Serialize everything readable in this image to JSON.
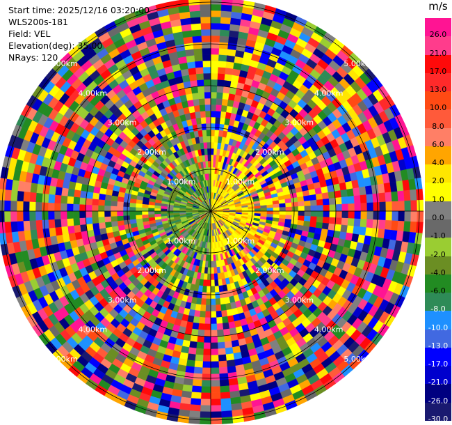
{
  "info": {
    "start_time": "Start time: 2025/12/16 03:20:00",
    "station": "WLS200s-181",
    "field": "Field: VEL",
    "elevation": "Elevation(deg): 35.00",
    "nrays": "NRays: 120"
  },
  "chart_data": {
    "type": "heatmap",
    "subtype": "polar-ppi",
    "field": "VEL",
    "elevation_deg": 35.0,
    "nrays": 120,
    "range_rings_km": [
      1,
      2,
      3,
      4,
      5
    ],
    "range_ring_labels": [
      "1.00km",
      "2.00km",
      "3.00km",
      "4.00km",
      "5.00km"
    ],
    "max_range_km": 5.1,
    "azimuth_spokes": 12,
    "pattern": {
      "inner_coherent_range_km": 1.0,
      "mixed_range_km": 2.0,
      "east_half_velocity": "1.0 to 4.0 m/s (positive, yellow)",
      "west_half_velocity": "-2.0 to -8.0 m/s (negative, green)",
      "beyond_2km": "noise, all colors"
    },
    "colorbar": {
      "unit": "m/s",
      "tick_labels": [
        "26.0",
        "21.0",
        "17.0",
        "13.0",
        "10.0",
        "8.0",
        "6.0",
        "4.0",
        "2.0",
        "1.0",
        "0.0",
        "-1.0",
        "-2.0",
        "-4.0",
        "-6.0",
        "-8.0",
        "-10.0",
        "-13.0",
        "-17.0",
        "-21.0",
        "-26.0",
        "-30.0"
      ],
      "colors": [
        "#ff1493",
        "#ff3c8c",
        "#ff0a0a",
        "#ff2a2a",
        "#ff4a14",
        "#ff5a3a",
        "#ff7f66",
        "#ffa500",
        "#ffe600",
        "#ffff00",
        "#808080",
        "#696969",
        "#9acd32",
        "#6b8e23",
        "#228b22",
        "#2e8b57",
        "#1e90ff",
        "#4169e1",
        "#0000ff",
        "#0000cd",
        "#000080",
        "#191970"
      ]
    }
  }
}
